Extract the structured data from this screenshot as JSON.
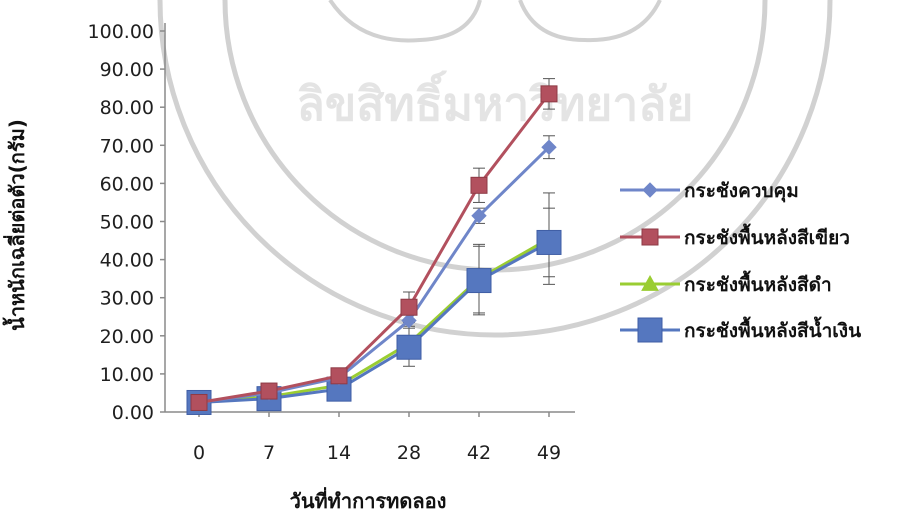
{
  "chart_data": {
    "type": "line",
    "title": "",
    "xlabel": "วันที่ทำการทดลอง",
    "ylabel": "น้ำหนักเฉลี่ยต่อตัว(กรัม)",
    "categories": [
      "0",
      "7",
      "14",
      "28",
      "42",
      "49"
    ],
    "ylim": [
      0,
      100
    ],
    "yticks": [
      "0.00",
      "10.00",
      "20.00",
      "30.00",
      "40.00",
      "50.00",
      "60.00",
      "70.00",
      "80.00",
      "90.00",
      "100.00"
    ],
    "grid": false,
    "legend_position": "right",
    "series": [
      {
        "name": "กระชังควบคุม",
        "color": "#6f86c9",
        "marker": "diamond",
        "values": [
          2.5,
          5.0,
          9.0,
          24.0,
          51.5,
          69.5
        ],
        "error": [
          0,
          0.5,
          1.0,
          1.5,
          2.0,
          3.0
        ]
      },
      {
        "name": "กระชังพื้นหลังสีเขียว",
        "color": "#b2505e",
        "marker": "square",
        "values": [
          2.5,
          5.5,
          9.5,
          27.5,
          59.5,
          83.5
        ],
        "error": [
          0,
          0.5,
          1.0,
          4.0,
          4.5,
          4.0
        ]
      },
      {
        "name": "กระชังพื้นหลังสีดำ",
        "color": "#9acd32",
        "marker": "triangle",
        "values": [
          2.5,
          4.0,
          7.0,
          18.0,
          35.0,
          45.5
        ],
        "error": [
          0,
          0.5,
          1.0,
          2.0,
          9.0,
          12.0
        ]
      },
      {
        "name": "กระชังพื้นหลังสีน้ำเงิน",
        "color": "#5577bf",
        "marker": "big-square",
        "values": [
          2.5,
          3.5,
          6.0,
          17.0,
          34.5,
          44.5
        ],
        "error": [
          0,
          0.5,
          1.0,
          5.0,
          9.0,
          9.0
        ]
      }
    ]
  }
}
